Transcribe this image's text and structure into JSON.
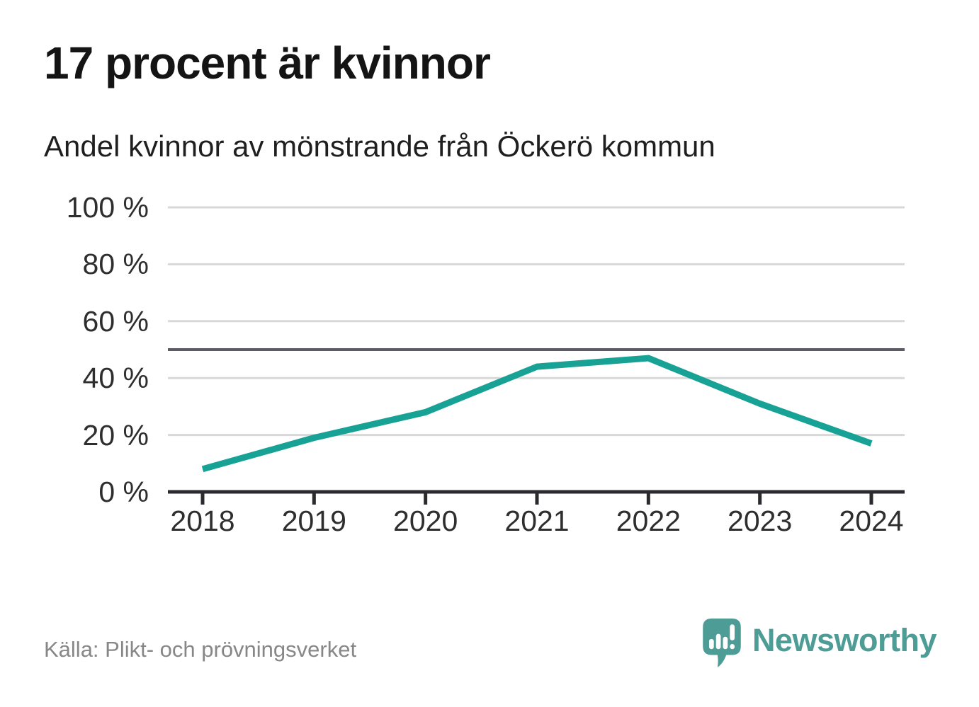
{
  "title": "17 procent är kvinnor",
  "subtitle": "Andel kvinnor av mönstrande från Öckerö kommun",
  "source": "Källa: Plikt- och prövningsverket",
  "brand": {
    "name": "Newsworthy",
    "icon": "newsworthy-speech-bubble-barchart-icon",
    "color": "#4e9c96"
  },
  "colors": {
    "line": "#17a295",
    "reference_line": "#5a5b63",
    "grid": "#d8d8d8",
    "axis": "#2b2b2f",
    "title_text": "#141414",
    "axis_text": "#2e2e2e",
    "source_text": "#878787"
  },
  "chart_data": {
    "type": "line",
    "title": "17 procent är kvinnor",
    "subtitle": "Andel kvinnor av mönstrande från Öckerö kommun",
    "x": [
      "2018",
      "2019",
      "2020",
      "2021",
      "2022",
      "2023",
      "2024"
    ],
    "values": [
      8,
      19,
      28,
      44,
      47,
      31,
      17
    ],
    "unit": "%",
    "ylim": [
      0,
      100
    ],
    "y_ticks": [
      0,
      20,
      40,
      60,
      80,
      100
    ],
    "y_tick_labels": [
      "0 %",
      "20 %",
      "40 %",
      "60 %",
      "80 %",
      "100 %"
    ],
    "reference_line": 50,
    "grid": true,
    "legend": false,
    "line_color": "#17a295",
    "xlabel": "",
    "ylabel": ""
  }
}
